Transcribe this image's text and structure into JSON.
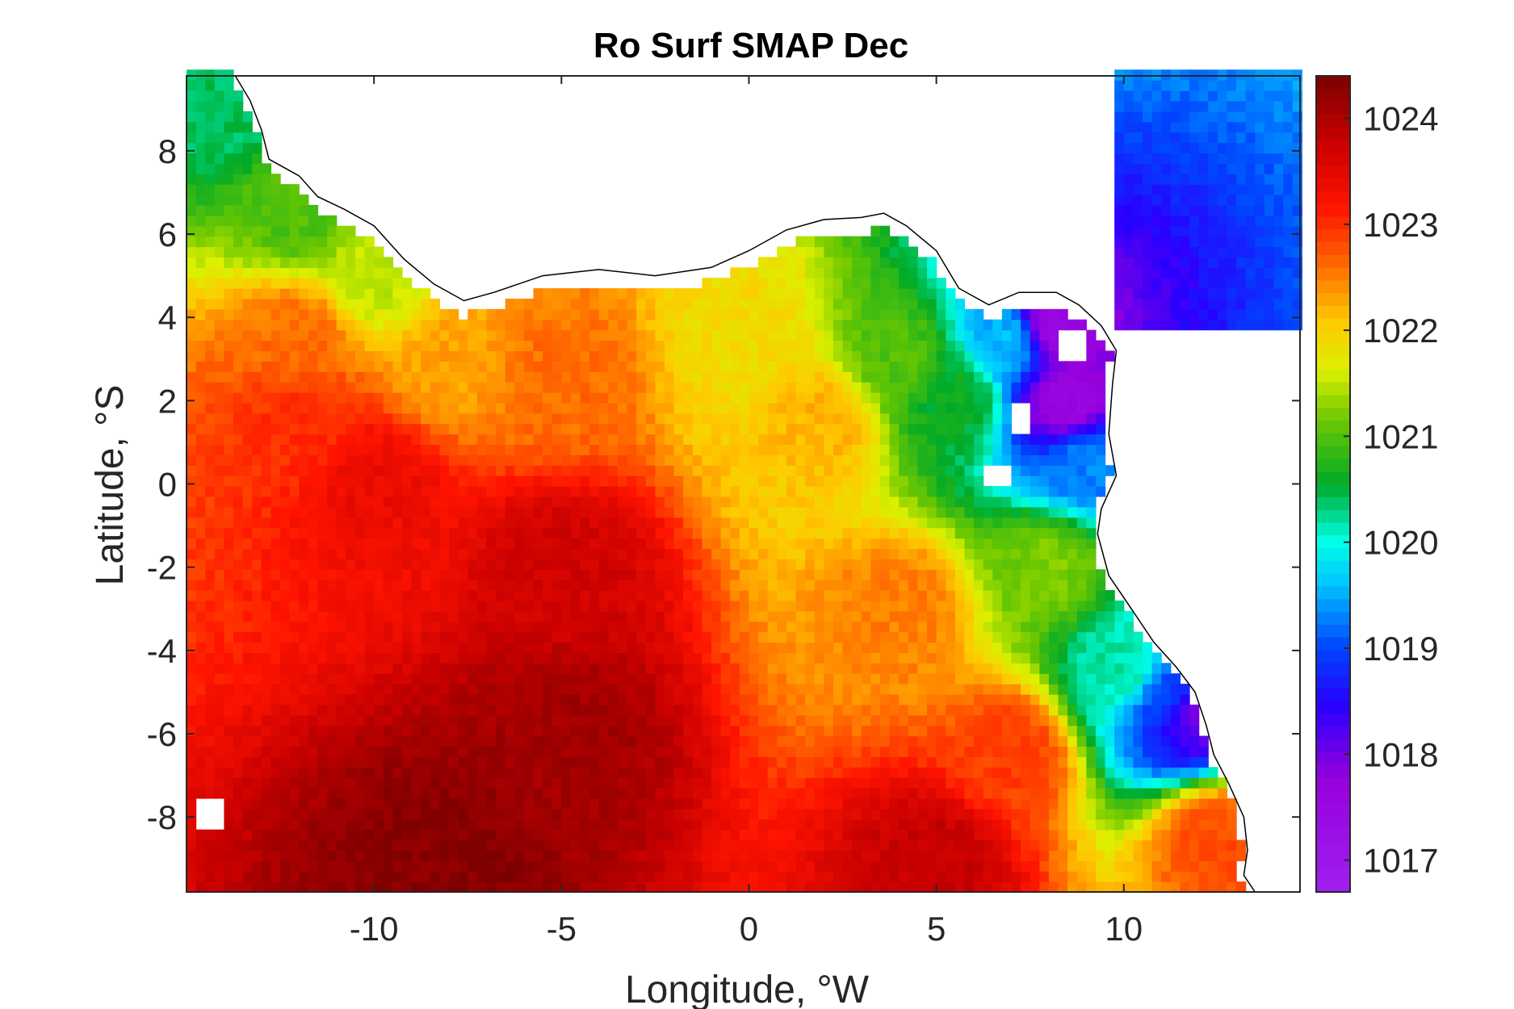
{
  "chart_data": {
    "type": "heatmap",
    "title": "Ro Surf SMAP Dec",
    "xlabel": "Longitude, °W",
    "ylabel": "Latitude, °S",
    "xlim": [
      -15,
      14.7
    ],
    "ylim": [
      -9.8,
      9.8
    ],
    "xticks": [
      -10,
      -5,
      0,
      5,
      10
    ],
    "xtick_labels": [
      "-10",
      "-5",
      "0",
      "5",
      "10"
    ],
    "yticks": [
      -8,
      -6,
      -4,
      -2,
      0,
      2,
      4,
      6,
      8
    ],
    "ytick_labels": [
      "-8",
      "-6",
      "-4",
      "-2",
      "0",
      "2",
      "4",
      "6",
      "8"
    ],
    "colorbar": {
      "min": 1016.7,
      "max": 1024.4,
      "ticks": [
        1017,
        1018,
        1019,
        1020,
        1021,
        1022,
        1023,
        1024
      ],
      "tick_labels": [
        "1017",
        "1018",
        "1019",
        "1020",
        "1021",
        "1022",
        "1023",
        "1024"
      ],
      "colormap": "jet-like (purple-blue-cyan-green-yellow-orange-red-darkred)"
    },
    "grid": false,
    "coastline_points": [
      [
        -13.7,
        9.8
      ],
      [
        -13.3,
        9.2
      ],
      [
        -13.0,
        8.5
      ],
      [
        -12.8,
        7.8
      ],
      [
        -12.0,
        7.4
      ],
      [
        -11.5,
        6.9
      ],
      [
        -10.8,
        6.6
      ],
      [
        -10.0,
        6.2
      ],
      [
        -9.2,
        5.4
      ],
      [
        -8.4,
        4.8
      ],
      [
        -7.6,
        4.4
      ],
      [
        -6.8,
        4.6
      ],
      [
        -5.5,
        5.0
      ],
      [
        -4.0,
        5.15
      ],
      [
        -2.5,
        5.0
      ],
      [
        -1.0,
        5.2
      ],
      [
        0.0,
        5.6
      ],
      [
        1.0,
        6.1
      ],
      [
        2.0,
        6.35
      ],
      [
        3.0,
        6.4
      ],
      [
        3.6,
        6.5
      ],
      [
        4.2,
        6.2
      ],
      [
        5.0,
        5.6
      ],
      [
        5.6,
        4.7
      ],
      [
        6.4,
        4.3
      ],
      [
        7.2,
        4.6
      ],
      [
        8.2,
        4.6
      ],
      [
        8.8,
        4.3
      ],
      [
        9.4,
        3.8
      ],
      [
        9.8,
        3.2
      ],
      [
        9.7,
        2.4
      ],
      [
        9.6,
        1.2
      ],
      [
        9.8,
        0.2
      ],
      [
        9.4,
        -0.6
      ],
      [
        9.3,
        -1.2
      ],
      [
        9.6,
        -2.2
      ],
      [
        10.2,
        -3.0
      ],
      [
        10.8,
        -3.8
      ],
      [
        11.4,
        -4.4
      ],
      [
        11.9,
        -5.0
      ],
      [
        12.2,
        -5.8
      ],
      [
        12.4,
        -6.5
      ],
      [
        12.8,
        -7.2
      ],
      [
        13.2,
        -8.0
      ],
      [
        13.3,
        -8.8
      ],
      [
        13.2,
        -9.4
      ],
      [
        13.5,
        -9.8
      ]
    ],
    "masked_islands": [
      {
        "name": "",
        "lon": 7.2,
        "lat": 1.6
      },
      {
        "name": "",
        "lon": 6.6,
        "lat": 0.2
      },
      {
        "name": "",
        "lon": 8.6,
        "lat": 3.4
      },
      {
        "name": "",
        "lon": -14.4,
        "lat": -7.9
      }
    ],
    "field_description_points": [
      {
        "lon": -14,
        "lat": 9,
        "value": 1020.4
      },
      {
        "lon": -12,
        "lat": 6.5,
        "value": 1021.0
      },
      {
        "lon": -10,
        "lat": 5.0,
        "value": 1021.5
      },
      {
        "lon": -12,
        "lat": 3.5,
        "value": 1022.6
      },
      {
        "lon": -8,
        "lat": 3.0,
        "value": 1022.3
      },
      {
        "lon": -12,
        "lat": 1.5,
        "value": 1023.0
      },
      {
        "lon": -5,
        "lat": 2.5,
        "value": 1022.6
      },
      {
        "lon": 0,
        "lat": 3.5,
        "value": 1021.9
      },
      {
        "lon": 2,
        "lat": 1.5,
        "value": 1022.2
      },
      {
        "lon": 4,
        "lat": 3.0,
        "value": 1021.0
      },
      {
        "lon": 5.5,
        "lat": 2.0,
        "value": 1020.6
      },
      {
        "lon": 7.0,
        "lat": 3.5,
        "value": 1019.6
      },
      {
        "lon": 8.0,
        "lat": 3.8,
        "value": 1017.5
      },
      {
        "lon": 8.5,
        "lat": 2.0,
        "value": 1017.6
      },
      {
        "lon": 9.0,
        "lat": 0.5,
        "value": 1019.3
      },
      {
        "lon": 8.0,
        "lat": -2.0,
        "value": 1021.2
      },
      {
        "lon": 10.0,
        "lat": -4.5,
        "value": 1020.2
      },
      {
        "lon": 11.2,
        "lat": -5.2,
        "value": 1019.0
      },
      {
        "lon": 11.8,
        "lat": -5.5,
        "value": 1018.0
      },
      {
        "lon": 12.5,
        "lat": -8.5,
        "value": 1022.8
      },
      {
        "lon": 7,
        "lat": -6.5,
        "value": 1022.9
      },
      {
        "lon": 4,
        "lat": -3.0,
        "value": 1022.5
      },
      {
        "lon": -10,
        "lat": 0,
        "value": 1023.4
      },
      {
        "lon": -5,
        "lat": -2,
        "value": 1023.7
      },
      {
        "lon": -5,
        "lat": -6,
        "value": 1024.1
      },
      {
        "lon": -8,
        "lat": -9,
        "value": 1024.3
      },
      {
        "lon": 5,
        "lat": -9,
        "value": 1023.8
      }
    ]
  }
}
